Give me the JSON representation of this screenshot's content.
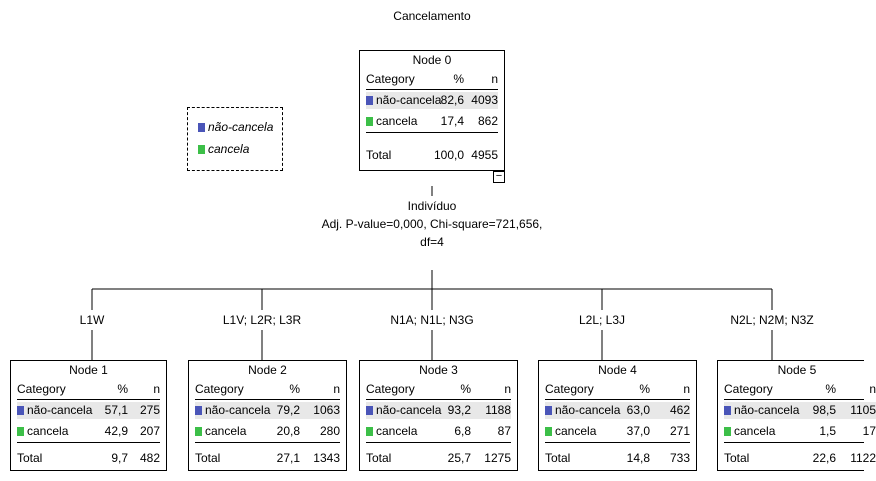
{
  "title": "Cancelamento",
  "colors": {
    "nao_cancela": "#4a55b8",
    "cancela": "#3cbf48"
  },
  "legend": {
    "items": [
      "não-cancela",
      "cancela"
    ]
  },
  "table_headers": {
    "category": "Category",
    "pct": "%",
    "n": "n"
  },
  "total_label": "Total",
  "collapse_symbol": "−",
  "root": {
    "title": "Node 0",
    "rows": [
      {
        "category": "não-cancela",
        "pct": "82,6",
        "n": "4093"
      },
      {
        "category": "cancela",
        "pct": "17,4",
        "n": "862"
      }
    ],
    "total": {
      "pct": "100,0",
      "n": "4955"
    }
  },
  "split": {
    "variable": "Indivíduo",
    "stats": "Adj. P-value=0,000, Chi-square=721,656,",
    "df": "df=4"
  },
  "children": [
    {
      "branch": "L1W",
      "title": "Node 1",
      "rows": [
        {
          "category": "não-cancela",
          "pct": "57,1",
          "n": "275"
        },
        {
          "category": "cancela",
          "pct": "42,9",
          "n": "207"
        }
      ],
      "total": {
        "pct": "9,7",
        "n": "482"
      }
    },
    {
      "branch": "L1V; L2R; L3R",
      "title": "Node 2",
      "rows": [
        {
          "category": "não-cancela",
          "pct": "79,2",
          "n": "1063"
        },
        {
          "category": "cancela",
          "pct": "20,8",
          "n": "280"
        }
      ],
      "total": {
        "pct": "27,1",
        "n": "1343"
      }
    },
    {
      "branch": "N1A; N1L; N3G",
      "title": "Node 3",
      "rows": [
        {
          "category": "não-cancela",
          "pct": "93,2",
          "n": "1188"
        },
        {
          "category": "cancela",
          "pct": "6,8",
          "n": "87"
        }
      ],
      "total": {
        "pct": "25,7",
        "n": "1275"
      }
    },
    {
      "branch": "L2L; L3J",
      "title": "Node 4",
      "rows": [
        {
          "category": "não-cancela",
          "pct": "63,0",
          "n": "462"
        },
        {
          "category": "cancela",
          "pct": "37,0",
          "n": "271"
        }
      ],
      "total": {
        "pct": "14,8",
        "n": "733"
      }
    },
    {
      "branch": "N2L; N2M; N3Z",
      "title": "Node 5",
      "rows": [
        {
          "category": "não-cancela",
          "pct": "98,5",
          "n": "1105"
        },
        {
          "category": "cancela",
          "pct": "1,5",
          "n": "17"
        }
      ],
      "total": {
        "pct": "22,6",
        "n": "1122"
      }
    }
  ]
}
